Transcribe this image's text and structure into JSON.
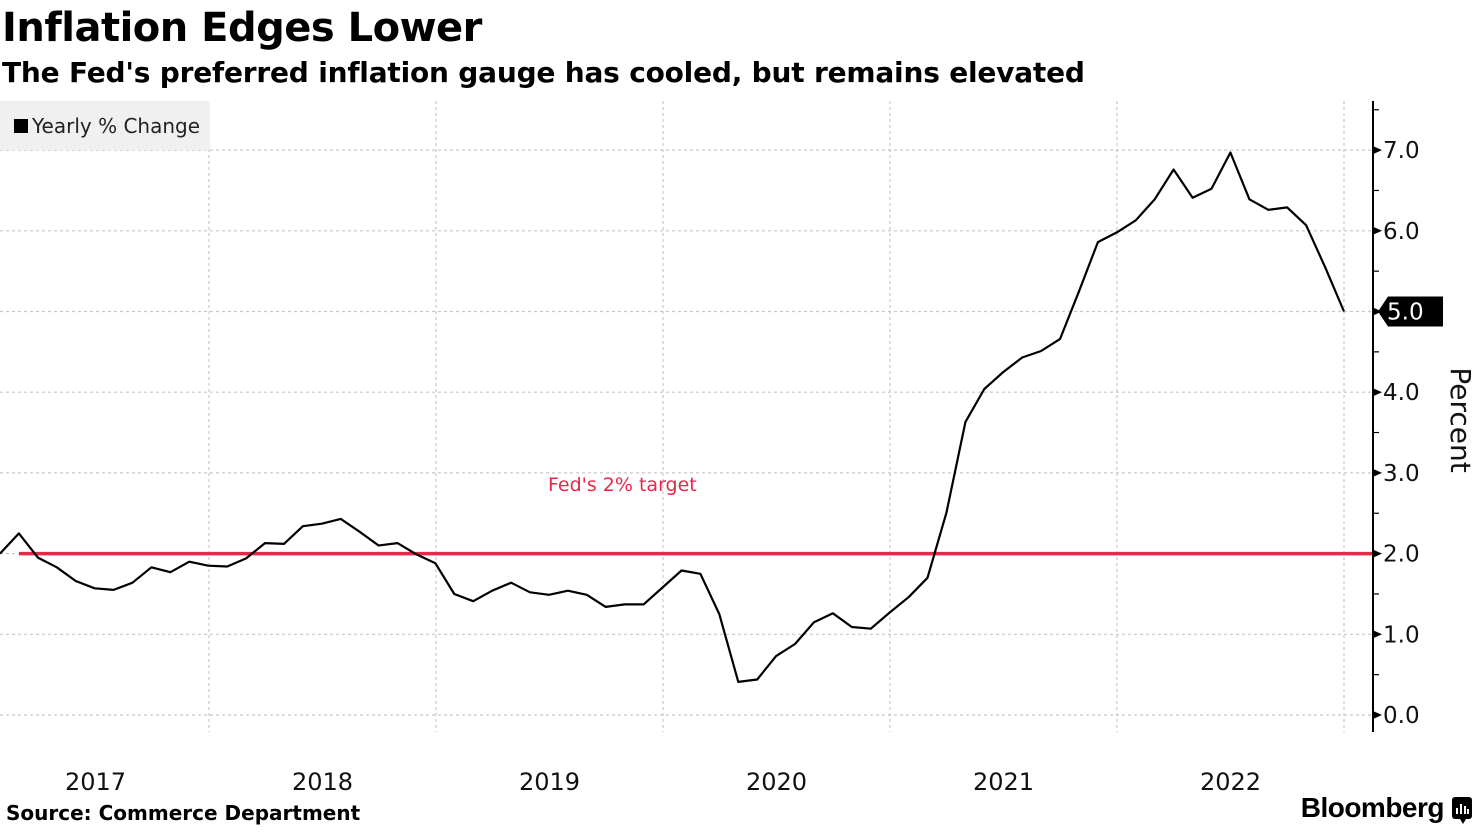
{
  "header": {
    "title": "Inflation Edges Lower",
    "subtitle": "The Fed's preferred inflation gauge has cooled, but remains elevated"
  },
  "footer": {
    "source": "Source: Commerce Department",
    "brand": "Bloomberg",
    "brand_icon": "bloomberg-chart-icon"
  },
  "colors": {
    "series": "#000000",
    "target_line": "#e8274b",
    "annotation": "#e8274b",
    "legend_bg": "#f0f0f0",
    "grid": "#c8c8c8"
  },
  "chart_data": {
    "type": "line",
    "title": "Inflation Edges Lower",
    "subtitle": "The Fed's preferred inflation gauge has cooled, but remains elevated",
    "xlabel": "",
    "ylabel": "Percent",
    "ylim": [
      0,
      7.5
    ],
    "yticks": [
      0.0,
      1.0,
      2.0,
      3.0,
      4.0,
      5.0,
      6.0,
      7.0
    ],
    "ytick_labels": [
      "0.0",
      "1.0",
      "2.0",
      "3.0",
      "4.0",
      "5.0",
      "6.0",
      "7.0"
    ],
    "x_categories": [
      "2017",
      "2018",
      "2019",
      "2020",
      "2021",
      "2022"
    ],
    "grid": true,
    "legend": {
      "position": "top-left",
      "entries": [
        "Yearly % Change"
      ]
    },
    "y_axis_position": "right",
    "series": [
      {
        "name": "Yearly % Change",
        "frequency": "monthly",
        "values": [
          2.0,
          2.25,
          1.95,
          1.83,
          1.66,
          1.57,
          1.55,
          1.64,
          1.83,
          1.77,
          1.9,
          1.85,
          1.84,
          1.94,
          2.13,
          2.12,
          2.34,
          2.37,
          2.43,
          2.27,
          2.1,
          2.13,
          1.99,
          1.88,
          1.5,
          1.41,
          1.54,
          1.64,
          1.52,
          1.49,
          1.54,
          1.49,
          1.34,
          1.37,
          1.37,
          1.58,
          1.79,
          1.75,
          1.25,
          0.41,
          0.44,
          0.73,
          0.88,
          1.15,
          1.26,
          1.09,
          1.07,
          1.27,
          1.46,
          1.7,
          2.51,
          3.63,
          4.04,
          4.25,
          4.43,
          4.51,
          4.66,
          5.25,
          5.86,
          5.98,
          6.13,
          6.39,
          6.76,
          6.41,
          6.52,
          6.97,
          6.39,
          6.26,
          6.29,
          6.07,
          5.55,
          5.0
        ]
      }
    ],
    "reference_line": {
      "value": 2.0,
      "label": "Fed's 2% target"
    },
    "last_value_label": "5.0"
  }
}
